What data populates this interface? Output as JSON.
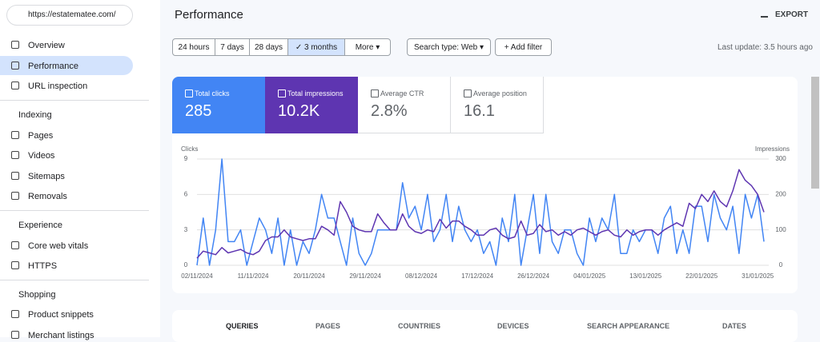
{
  "sidebar": {
    "property": "https://estatematee.com/",
    "top_items": [
      "Overview",
      "Performance",
      "URL inspection"
    ],
    "sections": [
      {
        "title": "Indexing",
        "items": [
          "Pages",
          "Videos",
          "Sitemaps",
          "Removals"
        ]
      },
      {
        "title": "Experience",
        "items": [
          "Core web vitals",
          "HTTPS"
        ]
      },
      {
        "title": "Shopping",
        "items": [
          "Product snippets",
          "Merchant listings"
        ]
      }
    ]
  },
  "header": {
    "title": "Performance",
    "export": "EXPORT"
  },
  "filters": {
    "ranges": [
      "24 hours",
      "7 days",
      "28 days",
      "3 months",
      "More"
    ],
    "search_type": "Search type: Web",
    "add_filter": "Add filter",
    "last_update": "Last update: 3.5 hours ago"
  },
  "metrics": [
    {
      "label": "Total clicks",
      "value": "285"
    },
    {
      "label": "Total impressions",
      "value": "10.2K"
    },
    {
      "label": "Average CTR",
      "value": "2.8%"
    },
    {
      "label": "Average position",
      "value": "16.1"
    }
  ],
  "chart_data": {
    "type": "line",
    "y_label": "Clicks",
    "y2_label": "Impressions",
    "categories": [
      "02/11/2024",
      null,
      null,
      null,
      null,
      null,
      null,
      null,
      null,
      "11/11/2024",
      null,
      null,
      null,
      null,
      null,
      null,
      null,
      null,
      "20/11/2024",
      null,
      null,
      null,
      null,
      null,
      null,
      null,
      null,
      "29/11/2024",
      null,
      null,
      null,
      null,
      null,
      null,
      null,
      null,
      "08/12/2024",
      null,
      null,
      null,
      null,
      null,
      null,
      null,
      null,
      "17/12/2024",
      null,
      null,
      null,
      null,
      null,
      null,
      null,
      null,
      "26/12/2024",
      null,
      null,
      null,
      null,
      null,
      null,
      null,
      null,
      "04/01/2025",
      null,
      null,
      null,
      null,
      null,
      null,
      null,
      null,
      "13/01/2025",
      null,
      null,
      null,
      null,
      null,
      null,
      null,
      null,
      "22/01/2025",
      null,
      null,
      null,
      null,
      null,
      null,
      null,
      null,
      "31/01/2025",
      null
    ],
    "ylim": [
      0,
      9
    ],
    "yticks": [
      0,
      3,
      6,
      9
    ],
    "y2lim": [
      0,
      300
    ],
    "y2ticks": [
      0,
      100,
      200,
      300
    ],
    "grid": true,
    "series": [
      {
        "color": "#4285f4",
        "values": [
          0,
          4,
          0,
          3,
          9,
          2,
          2,
          3,
          0,
          2,
          4,
          3,
          1,
          4,
          0,
          3,
          0,
          2,
          1,
          3,
          6,
          4,
          4,
          2,
          0,
          4,
          1,
          0,
          1,
          3,
          3,
          3,
          3,
          7,
          4,
          5,
          3,
          6,
          2,
          3,
          6,
          2,
          5,
          3,
          2,
          3,
          1,
          2,
          0,
          4,
          2,
          6,
          0,
          3,
          6,
          1,
          6,
          2,
          1,
          3,
          3,
          1,
          0,
          4,
          2,
          4,
          3,
          6,
          1,
          1,
          3,
          2,
          3,
          3,
          1,
          4,
          5,
          1,
          3,
          1,
          5,
          5,
          2,
          6,
          4,
          3,
          5,
          1,
          6,
          4,
          6,
          2
        ]
      },
      {
        "color": "#5e35b1",
        "axis": "y2",
        "values": [
          20,
          40,
          35,
          30,
          50,
          35,
          40,
          45,
          35,
          30,
          40,
          70,
          80,
          80,
          100,
          80,
          75,
          70,
          75,
          75,
          110,
          100,
          85,
          180,
          150,
          110,
          100,
          95,
          95,
          145,
          120,
          100,
          100,
          145,
          110,
          95,
          90,
          100,
          95,
          130,
          105,
          125,
          125,
          110,
          100,
          85,
          85,
          100,
          105,
          85,
          75,
          80,
          125,
          85,
          90,
          115,
          95,
          100,
          85,
          95,
          85,
          100,
          105,
          95,
          85,
          95,
          100,
          85,
          80,
          100,
          85,
          95,
          100,
          100,
          85,
          100,
          110,
          120,
          110,
          175,
          160,
          200,
          180,
          210,
          180,
          165,
          210,
          270,
          240,
          225,
          200,
          150
        ]
      }
    ]
  },
  "tabs": [
    "QUERIES",
    "PAGES",
    "COUNTRIES",
    "DEVICES",
    "SEARCH APPEARANCE",
    "DATES"
  ]
}
